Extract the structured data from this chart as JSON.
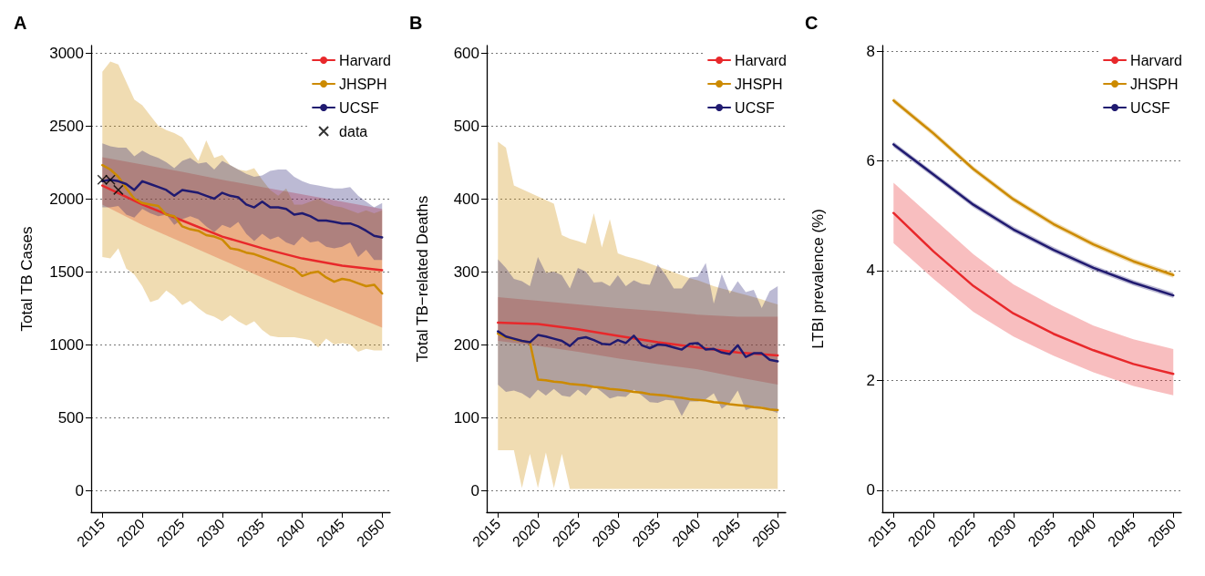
{
  "chart_data": [
    {
      "type": "line",
      "title": "A",
      "ylabel": "Total TB Cases",
      "xlim": [
        2013.6,
        2051
      ],
      "xticks": [
        2015,
        2020,
        2025,
        2030,
        2035,
        2040,
        2045,
        2050
      ],
      "ylim": [
        -150,
        3050
      ],
      "yticks": [
        0,
        500,
        1000,
        1500,
        2000,
        2500,
        3000
      ],
      "grid": "y",
      "legend": "top right",
      "marker": "none",
      "series": [
        {
          "name": "Harvard",
          "color": "#e8282b",
          "x": [
            2015,
            2020,
            2025,
            2030,
            2035,
            2040,
            2045,
            2050
          ],
          "values": [
            2090,
            1960,
            1850,
            1740,
            1660,
            1590,
            1540,
            1510
          ],
          "lower": [
            1960,
            1820,
            1700,
            1580,
            1460,
            1340,
            1230,
            1115
          ],
          "upper": [
            2285,
            2235,
            2185,
            2130,
            2080,
            2030,
            1980,
            1930
          ]
        },
        {
          "name": "JHSPH",
          "color": "#cc8a00",
          "x": [
            2015,
            2016,
            2017,
            2018,
            2019,
            2020,
            2021,
            2022,
            2023,
            2024,
            2025,
            2026,
            2027,
            2028,
            2029,
            2030,
            2031,
            2032,
            2033,
            2034,
            2035,
            2036,
            2037,
            2038,
            2039,
            2040,
            2041,
            2042,
            2043,
            2044,
            2045,
            2046,
            2047,
            2048,
            2049,
            2050
          ],
          "values": [
            2230,
            2200,
            2150,
            2070,
            2000,
            1970,
            1960,
            1950,
            1890,
            1880,
            1810,
            1790,
            1780,
            1750,
            1740,
            1720,
            1660,
            1650,
            1630,
            1620,
            1600,
            1580,
            1560,
            1540,
            1520,
            1470,
            1490,
            1500,
            1460,
            1430,
            1450,
            1440,
            1420,
            1400,
            1410,
            1350
          ],
          "lower": [
            1600,
            1590,
            1660,
            1520,
            1480,
            1400,
            1290,
            1310,
            1370,
            1330,
            1270,
            1300,
            1250,
            1210,
            1190,
            1160,
            1200,
            1160,
            1130,
            1160,
            1100,
            1060,
            1050,
            1050,
            1050,
            1040,
            1030,
            980,
            1040,
            1000,
            1010,
            1000,
            950,
            970,
            960,
            960
          ],
          "upper": [
            2870,
            2940,
            2920,
            2800,
            2680,
            2640,
            2570,
            2500,
            2470,
            2450,
            2420,
            2340,
            2260,
            2400,
            2280,
            2300,
            2230,
            2200,
            2190,
            2210,
            2130,
            2060,
            2020,
            2070,
            1960,
            1960,
            1980,
            2000,
            1970,
            1950,
            1940,
            1920,
            1900,
            1920,
            1900,
            1920
          ]
        },
        {
          "name": "UCSF",
          "color": "#201a70",
          "x": [
            2015,
            2016,
            2017,
            2018,
            2019,
            2020,
            2021,
            2022,
            2023,
            2024,
            2025,
            2026,
            2027,
            2028,
            2029,
            2030,
            2031,
            2032,
            2033,
            2034,
            2035,
            2036,
            2037,
            2038,
            2039,
            2040,
            2041,
            2042,
            2043,
            2044,
            2045,
            2046,
            2047,
            2048,
            2049,
            2050
          ],
          "values": [
            2120,
            2130,
            2120,
            2100,
            2060,
            2120,
            2100,
            2080,
            2060,
            2020,
            2060,
            2050,
            2040,
            2020,
            2000,
            2040,
            2020,
            2010,
            1960,
            1940,
            1980,
            1940,
            1940,
            1930,
            1890,
            1900,
            1880,
            1850,
            1850,
            1840,
            1830,
            1830,
            1810,
            1780,
            1745,
            1735
          ],
          "lower": [
            1940,
            1940,
            1950,
            1890,
            1870,
            1930,
            1900,
            1880,
            1890,
            1820,
            1860,
            1880,
            1860,
            1810,
            1770,
            1820,
            1800,
            1840,
            1760,
            1710,
            1760,
            1720,
            1740,
            1700,
            1680,
            1740,
            1700,
            1710,
            1670,
            1660,
            1670,
            1700,
            1600,
            1650,
            1580,
            1580
          ],
          "upper": [
            2380,
            2360,
            2350,
            2350,
            2290,
            2330,
            2300,
            2280,
            2250,
            2210,
            2260,
            2280,
            2240,
            2250,
            2200,
            2260,
            2230,
            2200,
            2170,
            2150,
            2160,
            2190,
            2200,
            2200,
            2150,
            2120,
            2100,
            2090,
            2080,
            2070,
            2070,
            2080,
            2020,
            1980,
            1940,
            1970
          ]
        },
        {
          "name": "data",
          "type": "scatter",
          "marker": "cross",
          "color": "#000000",
          "x": [
            2015,
            2016,
            2017
          ],
          "values": [
            2130,
            2130,
            2060
          ]
        }
      ]
    },
    {
      "type": "line",
      "title": "B",
      "ylabel": "Total TB−related Deaths",
      "xlim": [
        2013.6,
        2051
      ],
      "xticks": [
        2015,
        2020,
        2025,
        2030,
        2035,
        2040,
        2045,
        2050
      ],
      "ylim": [
        -30,
        610
      ],
      "yticks": [
        0,
        100,
        200,
        300,
        400,
        500,
        600
      ],
      "grid": "y",
      "legend": "top right",
      "marker": "none",
      "series": [
        {
          "name": "Harvard",
          "color": "#e8282b",
          "x": [
            2015,
            2020,
            2025,
            2030,
            2035,
            2040,
            2045,
            2050
          ],
          "values": [
            230,
            228,
            221,
            212,
            203,
            196,
            189,
            185
          ],
          "lower": [
            205,
            198,
            190,
            181,
            173,
            166,
            155,
            145
          ],
          "upper": [
            265,
            260,
            255,
            250,
            246,
            241,
            238,
            238
          ]
        },
        {
          "name": "JHSPH",
          "color": "#cc8a00",
          "x": [
            2015,
            2016,
            2017,
            2018,
            2019,
            2020,
            2021,
            2022,
            2023,
            2024,
            2025,
            2026,
            2027,
            2028,
            2029,
            2030,
            2031,
            2032,
            2033,
            2034,
            2035,
            2036,
            2037,
            2038,
            2039,
            2040,
            2041,
            2042,
            2043,
            2044,
            2045,
            2046,
            2047,
            2048,
            2049,
            2050
          ],
          "values": [
            215,
            210,
            207,
            205,
            203,
            152,
            151,
            149,
            148,
            146,
            145,
            144,
            142,
            141,
            139,
            138,
            137,
            135,
            134,
            132,
            131,
            130,
            128,
            127,
            125,
            124,
            123,
            121,
            120,
            118,
            117,
            116,
            114,
            113,
            111,
            110
          ],
          "lower": [
            55,
            55,
            55,
            3,
            50,
            3,
            52,
            3,
            50,
            2,
            2,
            2,
            2,
            2,
            2,
            2,
            2,
            2,
            2,
            2,
            2,
            2,
            2,
            2,
            2,
            2,
            2,
            2,
            2,
            2,
            2,
            2,
            2,
            2,
            2,
            2
          ],
          "upper": [
            478,
            470,
            418,
            413,
            408,
            403,
            398,
            393,
            350,
            345,
            342,
            338,
            380,
            333,
            372,
            325,
            321,
            318,
            315,
            311,
            307,
            303,
            299,
            295,
            291,
            288,
            284,
            280,
            277,
            274,
            271,
            268,
            265,
            262,
            258,
            255
          ]
        },
        {
          "name": "UCSF",
          "color": "#201a70",
          "x": [
            2015,
            2016,
            2017,
            2018,
            2019,
            2020,
            2021,
            2022,
            2023,
            2024,
            2025,
            2026,
            2027,
            2028,
            2029,
            2030,
            2031,
            2032,
            2033,
            2034,
            2035,
            2036,
            2037,
            2038,
            2039,
            2040,
            2041,
            2042,
            2043,
            2044,
            2045,
            2046,
            2047,
            2048,
            2049,
            2050
          ],
          "values": [
            218,
            211,
            208,
            205,
            203,
            213,
            211,
            208,
            205,
            198,
            208,
            210,
            206,
            201,
            200,
            206,
            202,
            212,
            199,
            195,
            200,
            199,
            196,
            193,
            201,
            202,
            193,
            194,
            189,
            187,
            199,
            183,
            188,
            188,
            179,
            177
          ],
          "lower": [
            145,
            135,
            137,
            133,
            126,
            138,
            130,
            139,
            130,
            128,
            138,
            130,
            143,
            135,
            126,
            129,
            128,
            138,
            130,
            121,
            120,
            124,
            123,
            102,
            122,
            122,
            125,
            133,
            112,
            120,
            137,
            110,
            114,
            115,
            110,
            106
          ],
          "upper": [
            317,
            305,
            290,
            287,
            280,
            320,
            298,
            300,
            295,
            277,
            305,
            300,
            285,
            286,
            280,
            295,
            280,
            288,
            283,
            282,
            310,
            295,
            277,
            277,
            292,
            293,
            312,
            256,
            297,
            270,
            287,
            272,
            275,
            250,
            273,
            280
          ]
        }
      ]
    },
    {
      "type": "line",
      "title": "C",
      "ylabel": "LTBI prevalence (%)",
      "xlim": [
        2013.6,
        2051
      ],
      "xticks": [
        2015,
        2020,
        2025,
        2030,
        2035,
        2040,
        2045,
        2050
      ],
      "ylim": [
        -0.4,
        8.1
      ],
      "yticks": [
        0,
        2,
        4,
        6,
        8
      ],
      "grid": "y",
      "legend": "top right",
      "marker": "none",
      "series": [
        {
          "name": "Harvard",
          "color": "#e8282b",
          "x": [
            2015,
            2020,
            2025,
            2030,
            2035,
            2040,
            2045,
            2050
          ],
          "values": [
            5.05,
            4.35,
            3.72,
            3.22,
            2.85,
            2.55,
            2.3,
            2.12
          ],
          "lower": [
            4.5,
            3.85,
            3.25,
            2.8,
            2.45,
            2.15,
            1.9,
            1.73
          ],
          "upper": [
            5.6,
            4.95,
            4.3,
            3.75,
            3.35,
            3.0,
            2.75,
            2.57
          ]
        },
        {
          "name": "JHSPH",
          "color": "#cc8a00",
          "x": [
            2015,
            2020,
            2025,
            2030,
            2035,
            2040,
            2045,
            2050
          ],
          "values": [
            7.1,
            6.5,
            5.85,
            5.3,
            4.85,
            4.48,
            4.17,
            3.92
          ],
          "lower": [
            7.05,
            6.45,
            5.8,
            5.25,
            4.8,
            4.43,
            4.12,
            3.87
          ],
          "upper": [
            7.15,
            6.55,
            5.9,
            5.35,
            4.9,
            4.53,
            4.22,
            3.97
          ]
        },
        {
          "name": "UCSF",
          "color": "#201a70",
          "x": [
            2015,
            2020,
            2025,
            2030,
            2035,
            2040,
            2045,
            2050
          ],
          "values": [
            6.3,
            5.75,
            5.2,
            4.75,
            4.38,
            4.05,
            3.78,
            3.55
          ],
          "lower": [
            6.25,
            5.7,
            5.15,
            4.7,
            4.33,
            4.0,
            3.73,
            3.5
          ],
          "upper": [
            6.35,
            5.8,
            5.25,
            4.8,
            4.43,
            4.1,
            3.83,
            3.6
          ]
        }
      ]
    }
  ]
}
